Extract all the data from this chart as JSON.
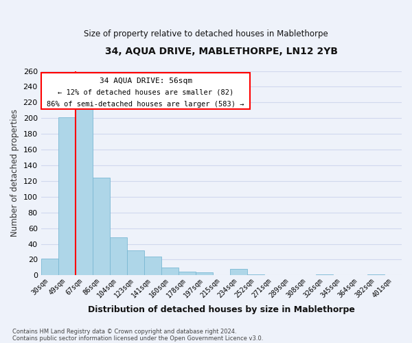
{
  "title": "34, AQUA DRIVE, MABLETHORPE, LN12 2YB",
  "subtitle": "Size of property relative to detached houses in Mablethorpe",
  "xlabel": "Distribution of detached houses by size in Mablethorpe",
  "ylabel": "Number of detached properties",
  "bar_color": "#aed6e8",
  "bar_edge_color": "#7ab8d4",
  "categories": [
    "30sqm",
    "49sqm",
    "67sqm",
    "86sqm",
    "104sqm",
    "123sqm",
    "141sqm",
    "160sqm",
    "178sqm",
    "197sqm",
    "215sqm",
    "234sqm",
    "252sqm",
    "271sqm",
    "289sqm",
    "308sqm",
    "326sqm",
    "345sqm",
    "364sqm",
    "382sqm",
    "401sqm"
  ],
  "values": [
    21,
    201,
    212,
    124,
    48,
    32,
    24,
    10,
    5,
    4,
    0,
    8,
    1,
    0,
    0,
    0,
    1,
    0,
    0,
    1,
    0
  ],
  "red_line_x": 1.5,
  "ylim": [
    0,
    260
  ],
  "yticks": [
    0,
    20,
    40,
    60,
    80,
    100,
    120,
    140,
    160,
    180,
    200,
    220,
    240,
    260
  ],
  "annotation_title": "34 AQUA DRIVE: 56sqm",
  "annotation_line1": "← 12% of detached houses are smaller (82)",
  "annotation_line2": "86% of semi-detached houses are larger (583) →",
  "footer_line1": "Contains HM Land Registry data © Crown copyright and database right 2024.",
  "footer_line2": "Contains public sector information licensed under the Open Government Licence v3.0.",
  "background_color": "#eef2fa",
  "grid_color": "#d0d8ee",
  "title_fontsize": 10,
  "subtitle_fontsize": 8.5
}
